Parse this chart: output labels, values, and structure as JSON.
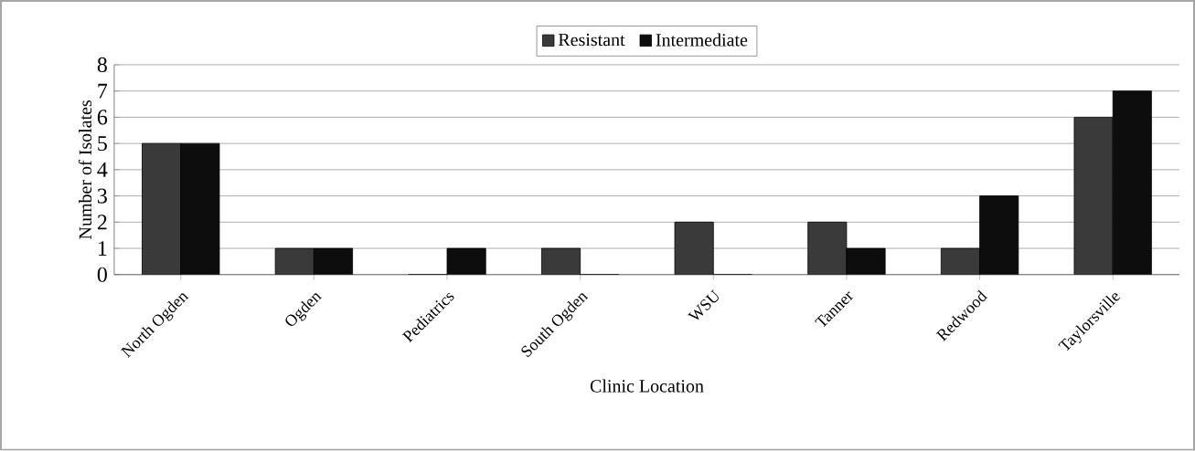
{
  "chart_data": {
    "type": "bar",
    "xlabel": "Clinic Location",
    "ylabel": "Number of Isolates",
    "categories": [
      "North Ogden",
      "Ogden",
      "Pediatrics",
      "South Ogden",
      "WSU",
      "Tanner",
      "Redwood",
      "Taylorsville"
    ],
    "series": [
      {
        "name": "Resistant",
        "color": "#3a3a3a",
        "values": [
          5,
          1,
          0,
          1,
          2,
          2,
          1,
          6
        ]
      },
      {
        "name": "Intermediate",
        "color": "#0d0d0d",
        "values": [
          5,
          1,
          1,
          0,
          0,
          1,
          3,
          7
        ]
      }
    ],
    "ylim": [
      0,
      8
    ],
    "yticks": [
      0,
      1,
      2,
      3,
      4,
      5,
      6,
      7,
      8
    ],
    "grid": "y",
    "legend": "top"
  }
}
